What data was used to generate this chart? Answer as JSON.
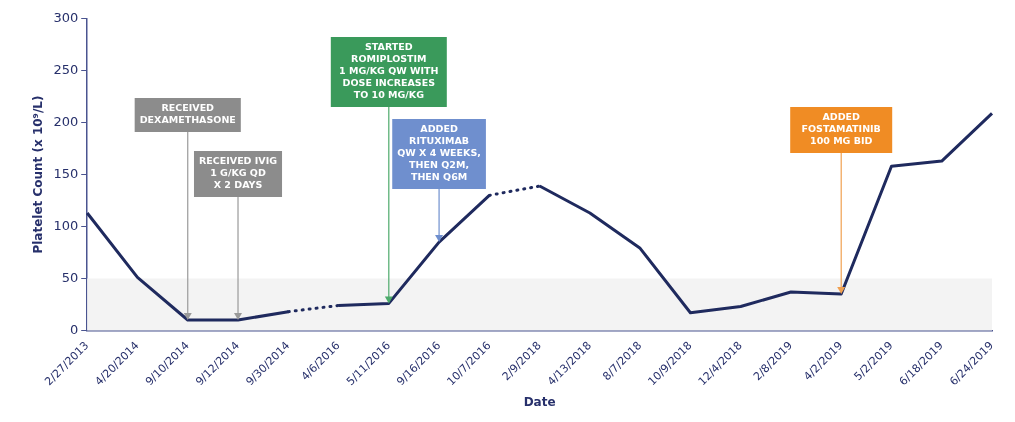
{
  "chart_data": {
    "type": "line",
    "xlabel": "Date",
    "ylabel": "Platelet Count (x 10⁹/L)",
    "categories": [
      "2/27/2013",
      "4/20/2014",
      "9/10/2014",
      "9/12/2014",
      "9/30/2014",
      "4/6/2016",
      "5/11/2016",
      "9/16/2016",
      "10/7/2016",
      "2/9/2018",
      "4/13/2018",
      "8/7/2018",
      "10/9/2018",
      "12/4/2018",
      "2/8/2019",
      "4/2/2019",
      "5/2/2019",
      "6/18/2019",
      "6/24/2019"
    ],
    "series": [
      {
        "color": "#1f2a5e",
        "line_style": "solid",
        "values": [
          113,
          51,
          10,
          10,
          18,
          null,
          null,
          null,
          null,
          null,
          null,
          null,
          null,
          null,
          null,
          null,
          null,
          null,
          null
        ]
      },
      {
        "color": "#1f2a5e",
        "line_style": "dotted",
        "values": [
          null,
          null,
          null,
          null,
          18,
          24,
          null,
          null,
          null,
          null,
          null,
          null,
          null,
          null,
          null,
          null,
          null,
          null,
          null
        ]
      },
      {
        "color": "#1f2a5e",
        "line_style": "solid",
        "values": [
          null,
          null,
          null,
          null,
          null,
          24,
          26,
          85,
          130,
          null,
          null,
          null,
          null,
          null,
          null,
          null,
          null,
          null,
          null
        ]
      },
      {
        "color": "#1f2a5e",
        "line_style": "dotted",
        "values": [
          null,
          null,
          null,
          null,
          null,
          null,
          null,
          null,
          130,
          139,
          null,
          null,
          null,
          null,
          null,
          null,
          null,
          null,
          null
        ]
      },
      {
        "color": "#1f2a5e",
        "line_style": "solid",
        "values": [
          null,
          null,
          null,
          null,
          null,
          null,
          null,
          null,
          null,
          139,
          113,
          79,
          17,
          23,
          37,
          35,
          158,
          163,
          209
        ]
      }
    ],
    "marker": "none",
    "grid": false,
    "legend": false,
    "ylim": [
      0,
      300
    ],
    "yticks": [
      0,
      50,
      100,
      150,
      200,
      250,
      300
    ],
    "bands": [
      {
        "axis": "y",
        "from": 0,
        "to": 50,
        "color": "#f3f3f3"
      }
    ],
    "annotations": [
      {
        "text": "RECEIVED\nDEXAMETHASONE",
        "x": "9/10/2014",
        "y": 10
      },
      {
        "text": "RECEIVED IVIG\n1 G/KG QD\nX 2 DAYS",
        "x": "9/12/2014",
        "y": 10
      },
      {
        "text": "STARTED\nROMIPLOSTIM\n1 MG/KG QW WITH\nDOSE INCREASES\nTO 10 MG/KG",
        "x": "5/11/2016",
        "y": 26
      },
      {
        "text": "ADDED\nRITUXIMAB\nQW X 4 WEEKS,\nTHEN Q2M,\nTHEN Q6M",
        "x": "9/16/2016",
        "y": 85
      },
      {
        "text": "ADDED\nFOSTAMATINIB\n100 MG BID",
        "x": "4/2/2019",
        "y": 35
      }
    ]
  }
}
